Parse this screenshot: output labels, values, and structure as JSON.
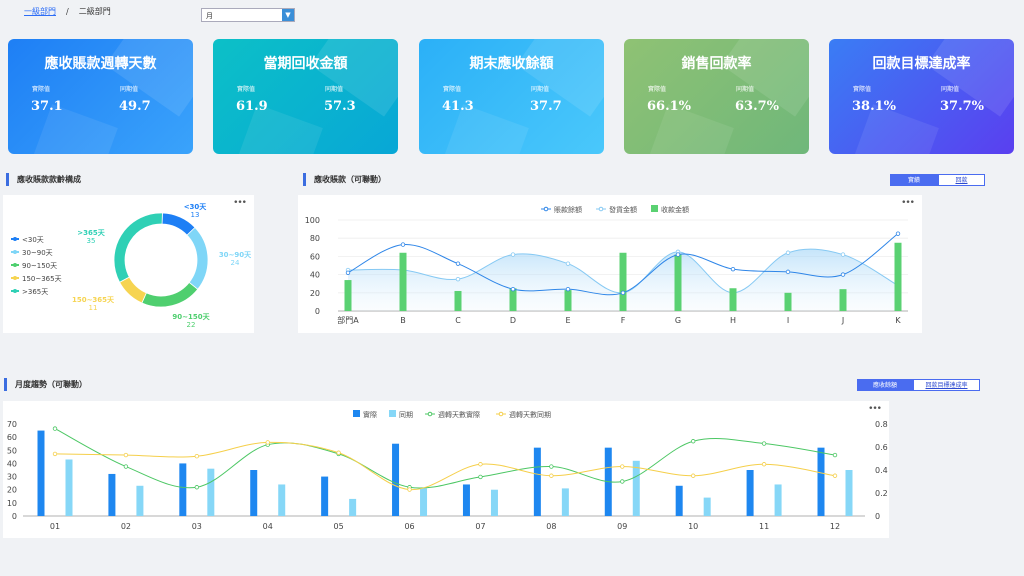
{
  "breadcrumb": {
    "level1": "一級部門",
    "separator": "/",
    "level2": "二級部門"
  },
  "period_select": {
    "value": "月"
  },
  "kpis": [
    {
      "title": "應收賬款週轉天數",
      "actual_label": "實際值",
      "actual": "37.1",
      "prior_label": "同期值",
      "prior": "49.7",
      "color1": "#1e7ff5",
      "color2": "#3aa3fb"
    },
    {
      "title": "當期回收金額",
      "actual_label": "實際值",
      "actual": "61.9",
      "prior_label": "同期值",
      "prior": "57.3",
      "color1": "#0cc0c7",
      "color2": "#08a7d6"
    },
    {
      "title": "期末應收餘額",
      "actual_label": "實際值",
      "actual": "41.3",
      "prior_label": "同期值",
      "prior": "37.7",
      "color1": "#2bb0f7",
      "color2": "#4ac8fb"
    },
    {
      "title": "銷售回款率",
      "actual_label": "實際值",
      "actual": "66.1%",
      "prior_label": "同期值",
      "prior": "63.7%",
      "color1": "#8fc274",
      "color2": "#6fb77a"
    },
    {
      "title": "回款目標達成率",
      "actual_label": "實際值",
      "actual": "38.1%",
      "prior_label": "同期值",
      "prior": "37.7%",
      "color1": "#3a7df4",
      "color2": "#5a3ff0"
    }
  ],
  "aging": {
    "title": "應收賬款款齡構成",
    "more": "•••",
    "chart_data": {
      "type": "pie",
      "labels": [
        "<30天",
        "30~90天",
        "90~150天",
        "150~365天",
        ">365天"
      ],
      "values": [
        13,
        24,
        22,
        11,
        35
      ],
      "colors": [
        "#1e7ff5",
        "#7fd6f7",
        "#4fcf6f",
        "#f6d451",
        "#2fd0b5"
      ]
    }
  },
  "receivable": {
    "title": "應收賬款（可聯動）",
    "tab_on": "實績",
    "tab_off": "回款",
    "more": "•••",
    "chart_data": {
      "type": "bar",
      "categories": [
        "部門A",
        "B",
        "C",
        "D",
        "E",
        "F",
        "G",
        "H",
        "I",
        "J",
        "K"
      ],
      "ylim": [
        0,
        100
      ],
      "yticks": [
        0,
        20,
        40,
        60,
        80,
        100
      ],
      "series": [
        {
          "name": "賬款餘額",
          "kind": "line",
          "color": "#2f86e8",
          "values": [
            42,
            73,
            52,
            24,
            24,
            20,
            62,
            46,
            43,
            40,
            85
          ]
        },
        {
          "name": "發貨金額",
          "kind": "area",
          "color": "#86c9f3",
          "values": [
            45,
            45,
            35,
            62,
            52,
            20,
            65,
            20,
            64,
            62,
            28
          ]
        },
        {
          "name": "收款金額",
          "kind": "bar",
          "color": "#5ad172",
          "values": [
            34,
            64,
            22,
            25,
            23,
            64,
            62,
            25,
            20,
            24,
            75
          ]
        }
      ]
    }
  },
  "monthly": {
    "title": "月度趨勢（可聯動）",
    "tab_on": "應收餘額",
    "tab_off": "回款目標達成率",
    "more": "•••",
    "chart_data": {
      "type": "bar",
      "categories": [
        "01",
        "02",
        "03",
        "04",
        "05",
        "06",
        "07",
        "08",
        "09",
        "10",
        "11",
        "12"
      ],
      "ylim_left": [
        0,
        70
      ],
      "yticks_left": [
        0,
        10,
        20,
        30,
        40,
        50,
        60,
        70
      ],
      "ylim_right": [
        0,
        0.8
      ],
      "yticks_right": [
        0,
        0.2,
        0.4,
        0.6,
        0.8
      ],
      "series": [
        {
          "name": "實際",
          "kind": "bar",
          "axis": "left",
          "color": "#1e87f0",
          "values": [
            65,
            32,
            40,
            35,
            30,
            55,
            24,
            52,
            52,
            23,
            35,
            52
          ]
        },
        {
          "name": "同期",
          "kind": "bar",
          "axis": "left",
          "color": "#86d7f7",
          "values": [
            43,
            23,
            36,
            24,
            13,
            21,
            20,
            21,
            42,
            14,
            24,
            35
          ]
        },
        {
          "name": "週轉天數實際",
          "kind": "line",
          "axis": "right",
          "color": "#4cc764",
          "values": [
            0.76,
            0.43,
            0.25,
            0.62,
            0.54,
            0.25,
            0.34,
            0.43,
            0.3,
            0.65,
            0.63,
            0.53
          ]
        },
        {
          "name": "週轉天數同期",
          "kind": "line",
          "axis": "right",
          "color": "#f5cf4a",
          "values": [
            0.54,
            0.53,
            0.52,
            0.64,
            0.55,
            0.23,
            0.45,
            0.35,
            0.43,
            0.35,
            0.45,
            0.35
          ]
        }
      ]
    }
  }
}
